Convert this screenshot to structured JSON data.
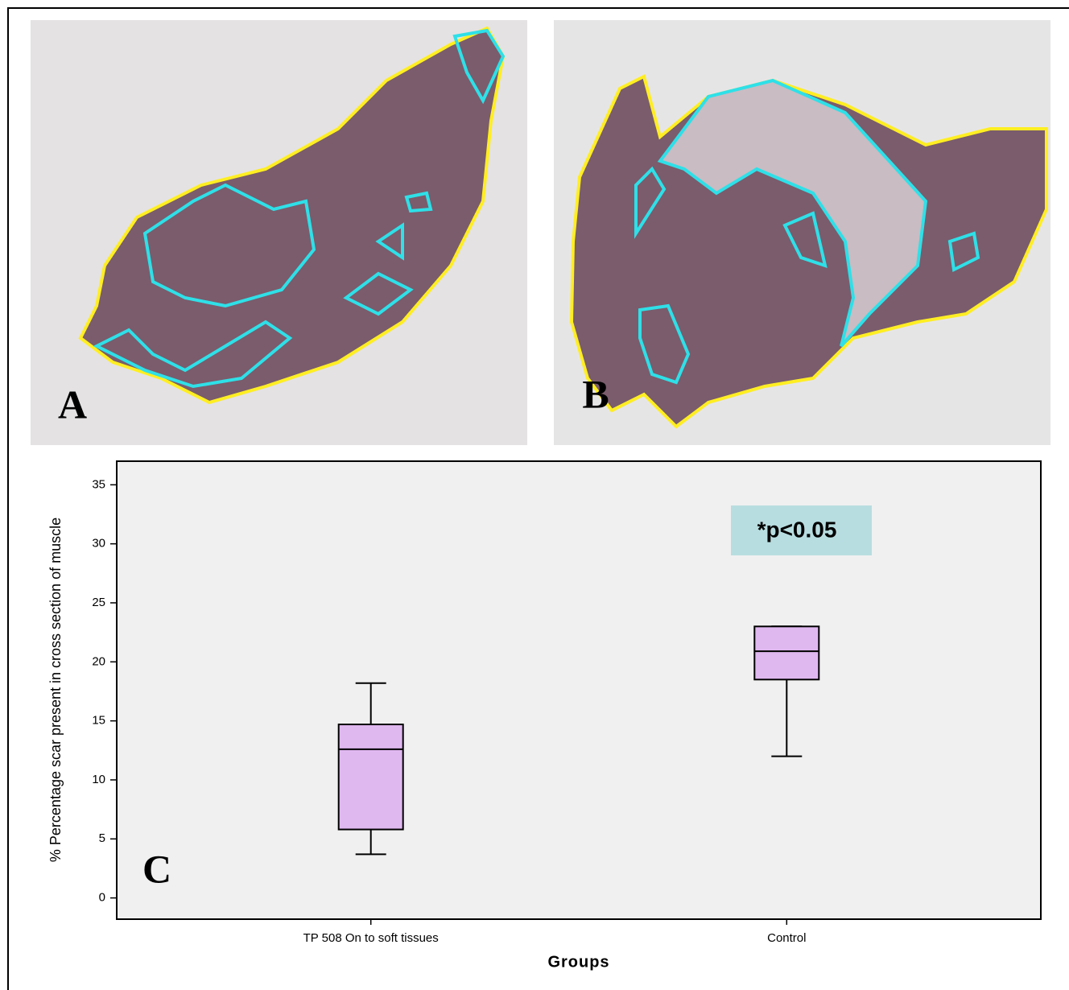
{
  "panel_labels": [
    "A",
    "B"
  ],
  "chart_data": {
    "type": "box",
    "panel_label": "C",
    "xlabel": "Groups",
    "ylabel": "% Percentage scar present in cross section of muscle",
    "categories": [
      "TP 508 On to soft tissues",
      "Control"
    ],
    "boxes": [
      {
        "min": 3.7,
        "q1": 5.8,
        "median": 12.6,
        "q3": 14.7,
        "max": 18.2
      },
      {
        "min": 12.0,
        "q1": 18.5,
        "median": 20.9,
        "q3": 23.0,
        "max": 23.0
      }
    ],
    "color": "#e0b8f0",
    "annotation": "*p<0.05",
    "ylim": [
      -1.8,
      37
    ],
    "yticks": [
      0,
      5,
      10,
      15,
      20,
      25,
      30,
      35
    ]
  }
}
